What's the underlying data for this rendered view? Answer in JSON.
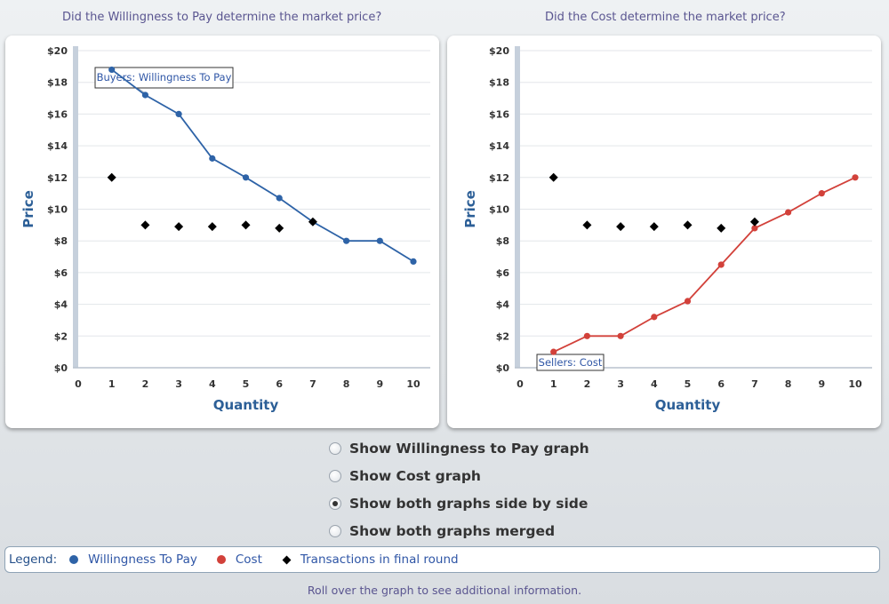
{
  "titles": {
    "left": "Did the Willingness to Pay determine the market price?",
    "right": "Did the Cost determine the market price?"
  },
  "colors": {
    "willingness": "#2e63a7",
    "cost": "#d2413a",
    "transactions": "#000000",
    "axis_title": "#2c5f97"
  },
  "chart_data": [
    {
      "type": "line",
      "title": "Did the Willingness to Pay determine the market price?",
      "xlabel": "Quantity",
      "ylabel": "Price",
      "xlim": [
        0,
        10
      ],
      "ylim": [
        0,
        20
      ],
      "x_ticks": [
        "0",
        "1",
        "2",
        "3",
        "4",
        "5",
        "6",
        "7",
        "8",
        "9",
        "10"
      ],
      "y_ticks": [
        "$0",
        "$2",
        "$4",
        "$6",
        "$8",
        "$10",
        "$12",
        "$14",
        "$16",
        "$18",
        "$20"
      ],
      "callout": "Buyers: Willingness To Pay",
      "series": [
        {
          "name": "Willingness To Pay",
          "kind": "line",
          "color": "#2e63a7",
          "x": [
            1,
            2,
            3,
            4,
            5,
            6,
            7,
            8,
            9,
            10
          ],
          "y": [
            18.8,
            17.2,
            16,
            13.2,
            12,
            10.7,
            9.2,
            8,
            8,
            6.7
          ]
        },
        {
          "name": "Transactions in final round",
          "kind": "diamond",
          "color": "#000000",
          "x": [
            1,
            2,
            3,
            4,
            5,
            6,
            7
          ],
          "y": [
            12,
            9,
            8.9,
            8.9,
            9,
            8.8,
            9.2
          ]
        }
      ]
    },
    {
      "type": "line",
      "title": "Did the Cost determine the market price?",
      "xlabel": "Quantity",
      "ylabel": "Price",
      "xlim": [
        0,
        10
      ],
      "ylim": [
        0,
        20
      ],
      "x_ticks": [
        "0",
        "1",
        "2",
        "3",
        "4",
        "5",
        "6",
        "7",
        "8",
        "9",
        "10"
      ],
      "y_ticks": [
        "$0",
        "$2",
        "$4",
        "$6",
        "$8",
        "$10",
        "$12",
        "$14",
        "$16",
        "$18",
        "$20"
      ],
      "callout": "Sellers: Cost",
      "series": [
        {
          "name": "Cost",
          "kind": "line",
          "color": "#d2413a",
          "x": [
            1,
            2,
            3,
            4,
            5,
            6,
            7,
            8,
            9,
            10
          ],
          "y": [
            1,
            2,
            2,
            3.2,
            4.2,
            6.5,
            8.8,
            9.8,
            11,
            12
          ]
        },
        {
          "name": "Transactions in final round",
          "kind": "diamond",
          "color": "#000000",
          "x": [
            1,
            2,
            3,
            4,
            5,
            6,
            7
          ],
          "y": [
            12,
            9,
            8.9,
            8.9,
            9,
            8.8,
            9.2
          ]
        }
      ]
    }
  ],
  "options": [
    {
      "label": "Show Willingness to Pay graph",
      "checked": false
    },
    {
      "label": "Show Cost graph",
      "checked": false
    },
    {
      "label": "Show both graphs side by side",
      "checked": true
    },
    {
      "label": "Show both graphs merged",
      "checked": false
    }
  ],
  "legend": {
    "title": "Legend:",
    "items": [
      {
        "label": "Willingness To Pay",
        "icon": "dot-icon",
        "color": "#2e63a7"
      },
      {
        "label": "Cost",
        "icon": "dot-icon",
        "color": "#d2413a"
      },
      {
        "label": "Transactions in final round",
        "icon": "diamond-icon",
        "color": "#000000"
      }
    ]
  },
  "footer": "Roll over the graph to see additional information."
}
